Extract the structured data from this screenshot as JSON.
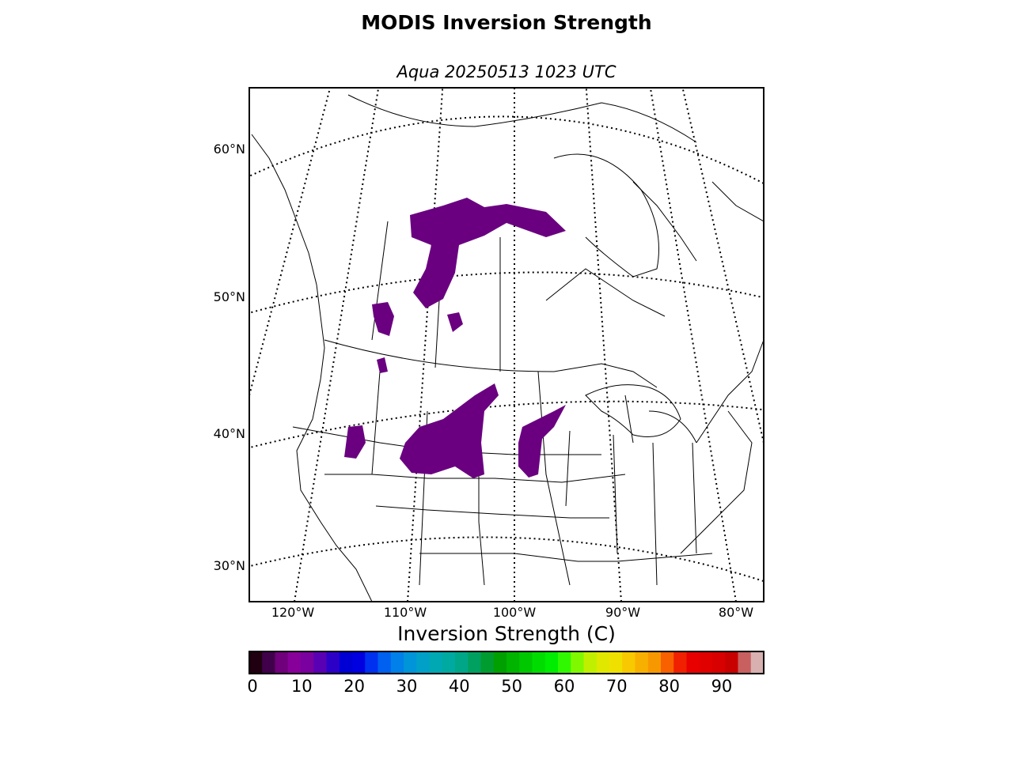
{
  "title": "MODIS Inversion Strength",
  "subtitle": "Aqua 20250513 1023 UTC",
  "map": {
    "projection": "lambert-conformal",
    "lat_labels": [
      "60°N",
      "50°N",
      "40°N",
      "30°N"
    ],
    "lon_labels": [
      "120°W",
      "110°W",
      "100°W",
      "90°W",
      "80°W"
    ],
    "features": [
      "coastlines",
      "country-borders",
      "state-province-borders",
      "lakes",
      "graticule"
    ],
    "data_color": "#6a0080",
    "data_regions": [
      "northern-alberta-saskatchewan",
      "southern-alberta-montana",
      "wyoming-colorado",
      "kansas-nebraska",
      "idaho-nevada"
    ]
  },
  "colorbar": {
    "label": "Inversion Strength (C)",
    "ticks": [
      "0",
      "10",
      "20",
      "30",
      "40",
      "50",
      "60",
      "70",
      "80",
      "90"
    ],
    "min": 0,
    "max": 98,
    "colors": [
      "#200010",
      "#40004a",
      "#70007c",
      "#88009a",
      "#7a00a0",
      "#5a00b4",
      "#2d00c8",
      "#0000d4",
      "#0000e0",
      "#0030f0",
      "#0060f0",
      "#0080e8",
      "#0094d8",
      "#00a0c8",
      "#00a8b4",
      "#00aaa0",
      "#00a688",
      "#00a060",
      "#009c30",
      "#00a000",
      "#00b400",
      "#00c800",
      "#00dc00",
      "#00ec00",
      "#30f800",
      "#80f800",
      "#c0f000",
      "#e0e800",
      "#f0e000",
      "#f8c800",
      "#f8b000",
      "#f89800",
      "#f86000",
      "#f02000",
      "#e80000",
      "#e00000",
      "#d80000",
      "#c80000",
      "#c86060",
      "#d8b0b0"
    ]
  },
  "colors": {
    "frame": "#000000",
    "background": "#ffffff"
  }
}
